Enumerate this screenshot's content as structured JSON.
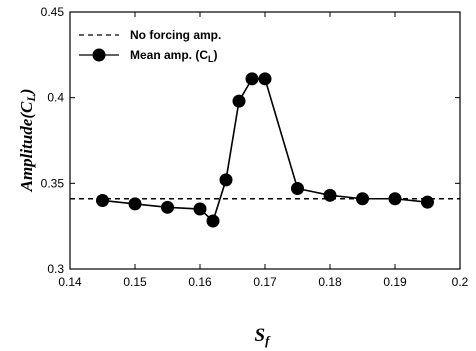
{
  "chart_data": {
    "type": "line",
    "title": "",
    "xlabel": "S",
    "xlabel_sub": "f",
    "ylabel": "Amplitude",
    "ylabel_paren": "(C",
    "ylabel_sub": "L",
    "ylabel_close": ")",
    "xlim": [
      0.14,
      0.2
    ],
    "ylim": [
      0.3,
      0.45
    ],
    "xticks": [
      "0.14",
      "0.15",
      "0.16",
      "0.17",
      "0.18",
      "0.19",
      "0.2"
    ],
    "yticks": [
      "0.3",
      "0.35",
      "0.4",
      "0.45"
    ],
    "grid": false,
    "legend_position": "top-left",
    "series": [
      {
        "name": "No forcing amp.",
        "style": "dashed",
        "x": [
          0.14,
          0.2
        ],
        "y": [
          0.341,
          0.341
        ]
      },
      {
        "name": "Mean amp. (C",
        "name_sub": "L",
        "name_close": ")",
        "style": "solid-marker",
        "x": [
          0.145,
          0.15,
          0.155,
          0.16,
          0.162,
          0.164,
          0.166,
          0.168,
          0.17,
          0.175,
          0.18,
          0.185,
          0.19,
          0.195
        ],
        "y": [
          0.34,
          0.338,
          0.336,
          0.335,
          0.328,
          0.352,
          0.398,
          0.411,
          0.411,
          0.347,
          0.343,
          0.341,
          0.341,
          0.339
        ]
      }
    ]
  }
}
